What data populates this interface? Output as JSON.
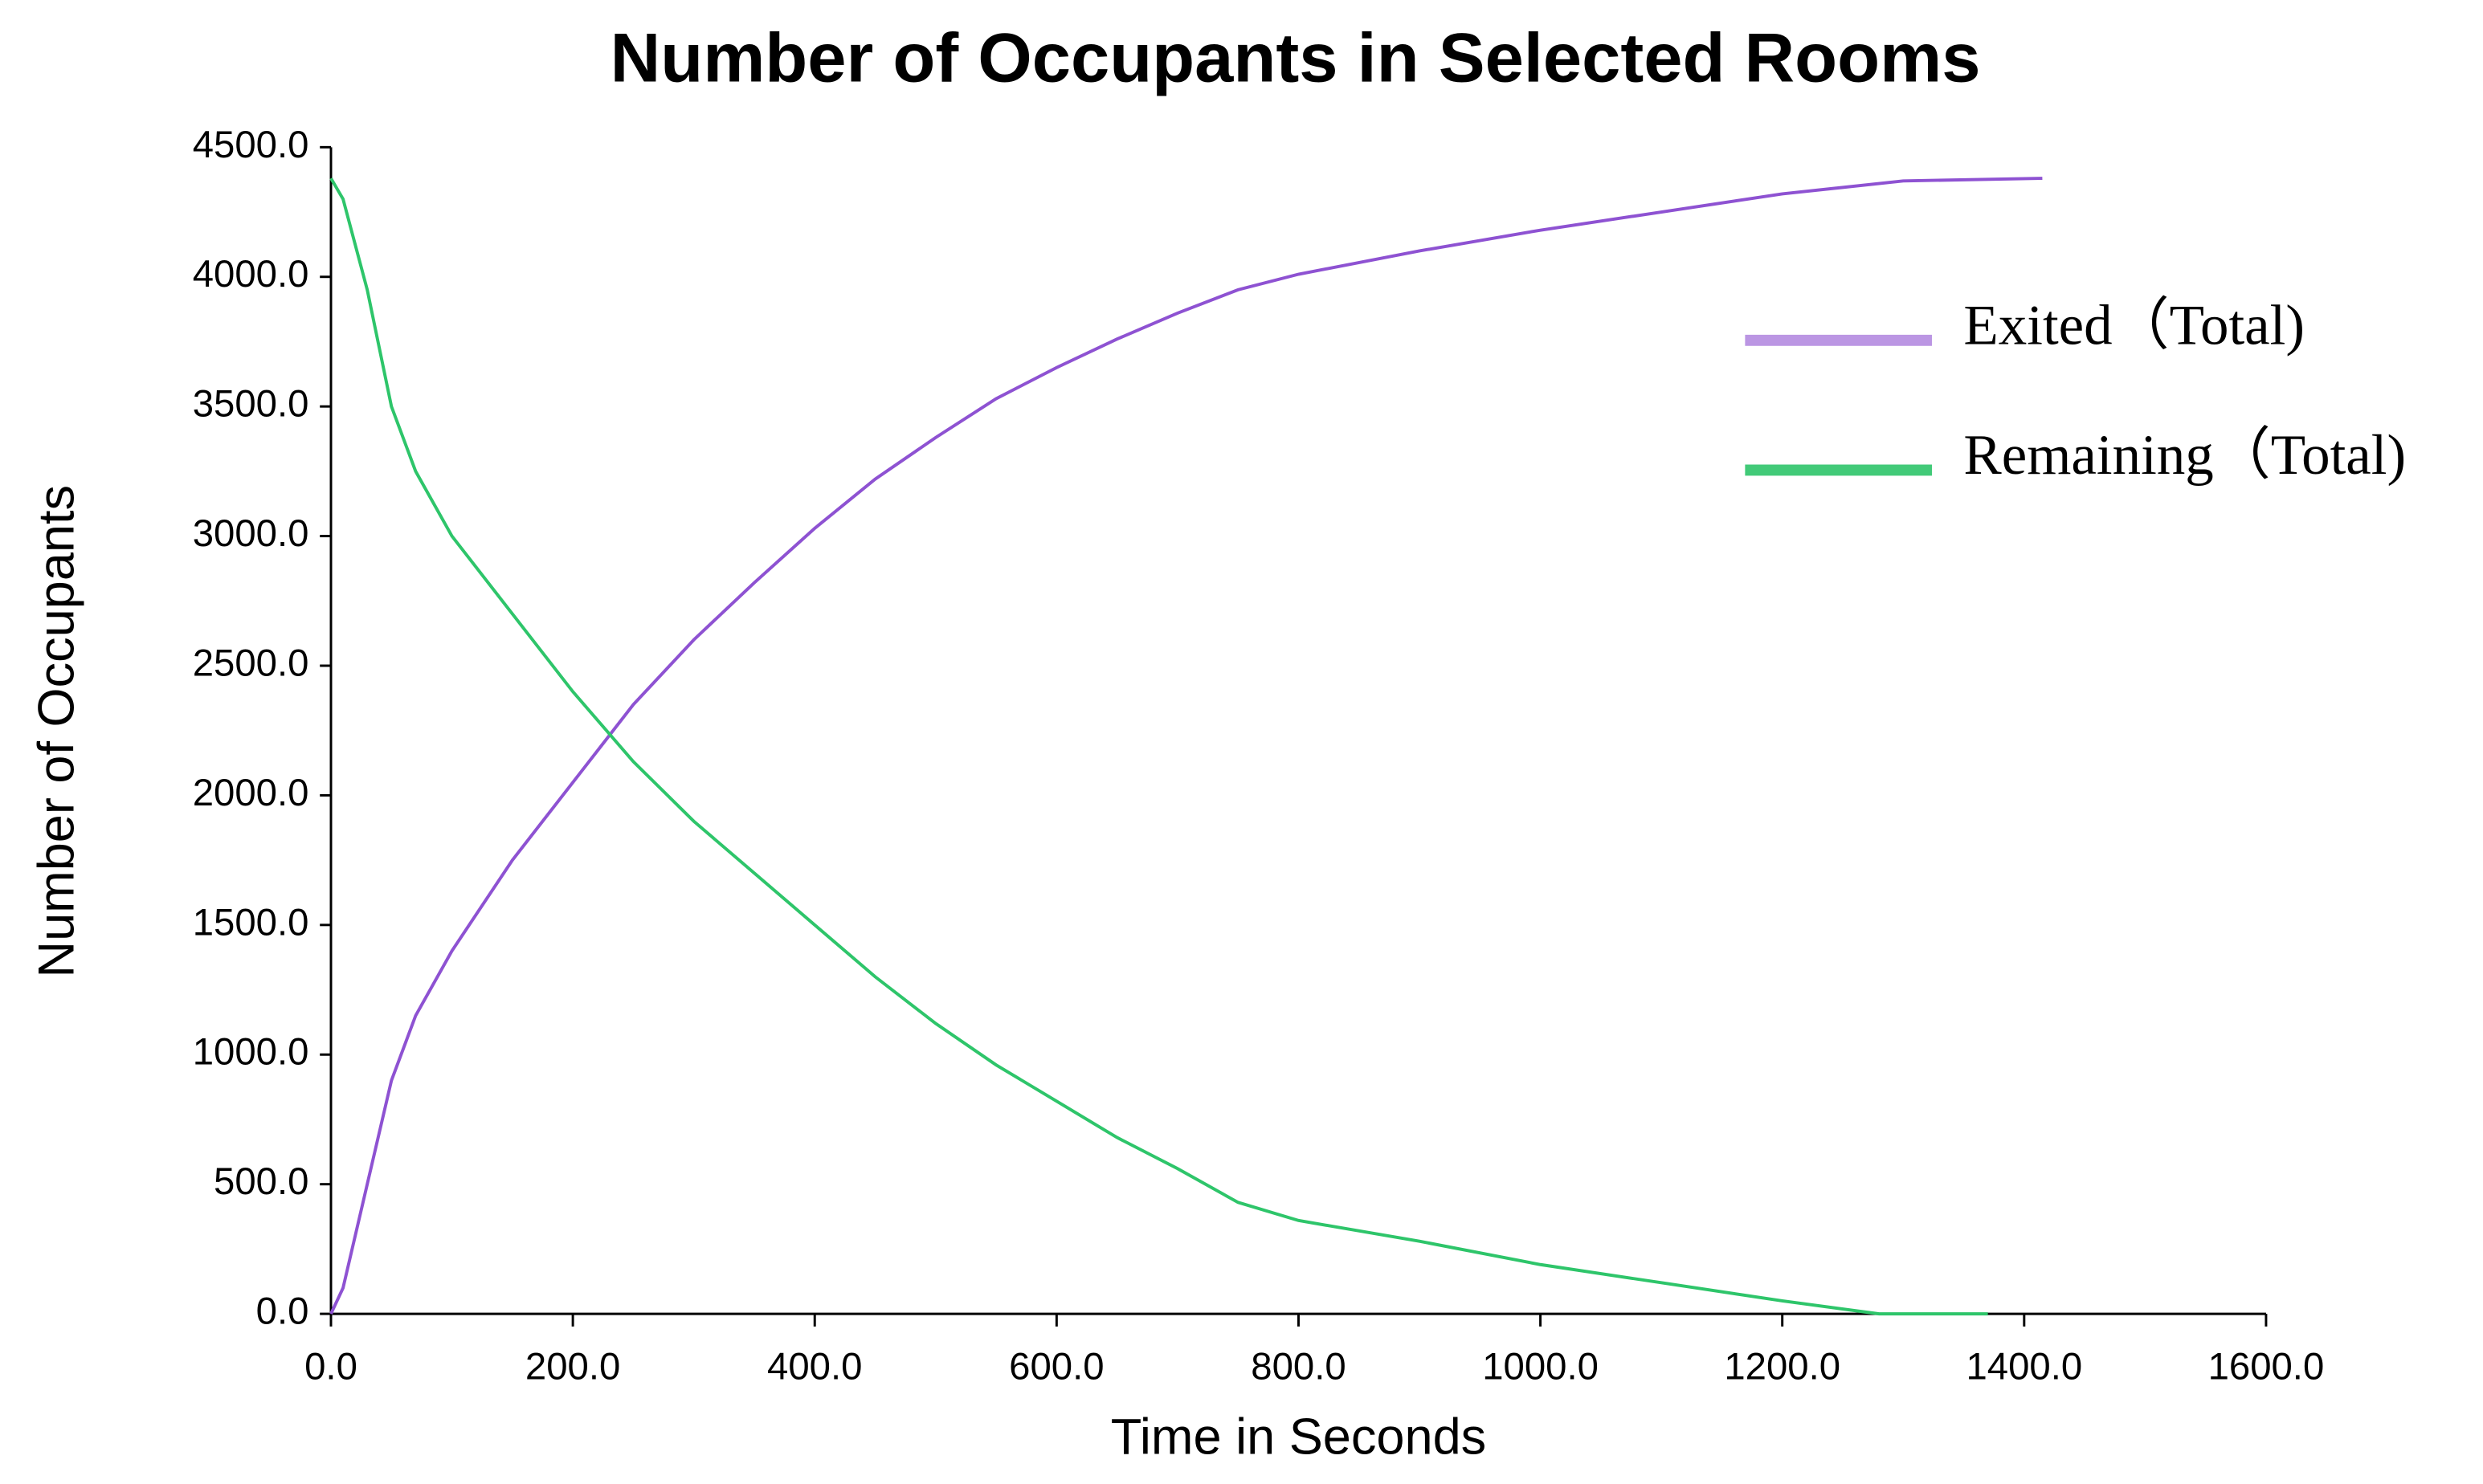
{
  "chart_data": {
    "type": "line",
    "title": "Number of Occupants in Selected Rooms",
    "x_label": "Time in Seconds",
    "y_label": "Number of Occupants",
    "xlim": [
      0,
      1600
    ],
    "ylim": [
      0,
      4500
    ],
    "xticks": [
      {
        "value": 0,
        "label": "0.0"
      },
      {
        "value": 200,
        "label": "200.0"
      },
      {
        "value": 400,
        "label": "400.0"
      },
      {
        "value": 600,
        "label": "600.0"
      },
      {
        "value": 800,
        "label": "800.0"
      },
      {
        "value": 1000,
        "label": "1000.0"
      },
      {
        "value": 1200,
        "label": "1200.0"
      },
      {
        "value": 1400,
        "label": "1400.0"
      },
      {
        "value": 1600,
        "label": "1600.0"
      }
    ],
    "yticks": [
      {
        "value": 0,
        "label": "0.0"
      },
      {
        "value": 500,
        "label": "500.0"
      },
      {
        "value": 1000,
        "label": "1000.0"
      },
      {
        "value": 1500,
        "label": "1500.0"
      },
      {
        "value": 2000,
        "label": "2000.0"
      },
      {
        "value": 2500,
        "label": "2500.0"
      },
      {
        "value": 3000,
        "label": "3000.0"
      },
      {
        "value": 3500,
        "label": "3500.0"
      },
      {
        "value": 4000,
        "label": "4000.0"
      },
      {
        "value": 4500,
        "label": "4500.0"
      }
    ],
    "series": [
      {
        "name": "Exited（Total)",
        "color": "#8e52d2",
        "x": [
          0,
          10,
          30,
          50,
          70,
          100,
          150,
          200,
          250,
          300,
          350,
          400,
          450,
          500,
          550,
          600,
          650,
          700,
          750,
          800,
          900,
          1000,
          1100,
          1200,
          1300,
          1415
        ],
        "values": [
          0,
          100,
          500,
          900,
          1150,
          1400,
          1750,
          2050,
          2350,
          2600,
          2820,
          3030,
          3220,
          3380,
          3530,
          3650,
          3760,
          3860,
          3950,
          4010,
          4100,
          4180,
          4250,
          4320,
          4370,
          4380
        ]
      },
      {
        "name": "Remaining（Total)",
        "color": "#2ec56a",
        "x": [
          0,
          10,
          30,
          50,
          70,
          100,
          150,
          200,
          250,
          300,
          350,
          400,
          450,
          500,
          550,
          600,
          650,
          700,
          750,
          800,
          900,
          1000,
          1100,
          1200,
          1280,
          1370
        ],
        "values": [
          4380,
          4300,
          3950,
          3500,
          3250,
          3000,
          2700,
          2400,
          2130,
          1900,
          1700,
          1500,
          1300,
          1120,
          960,
          820,
          680,
          560,
          430,
          360,
          280,
          190,
          120,
          50,
          0,
          0
        ]
      }
    ]
  }
}
